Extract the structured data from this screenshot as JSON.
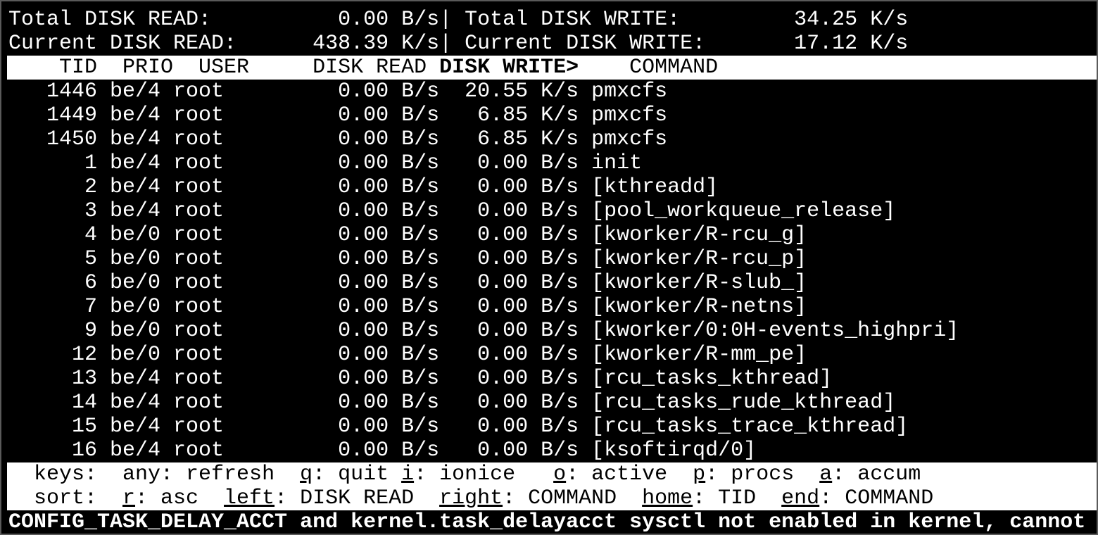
{
  "summary": {
    "total_read_label": "Total DISK READ:",
    "total_read": "0.00 B/s",
    "total_write_label": "Total DISK WRITE:",
    "total_write": "34.25 K/s",
    "current_read_label": "Current DISK READ:",
    "current_read": "438.39 K/s",
    "current_write_label": "Current DISK WRITE:",
    "current_write": "17.12 K/s",
    "separator": "|"
  },
  "header": {
    "tid": "TID",
    "prio": "PRIO",
    "user": "USER",
    "disk_read": "DISK READ",
    "disk_write": "DISK WRITE>",
    "command": "COMMAND",
    "sorted_column": "disk_write"
  },
  "rows": [
    {
      "tid": "1446",
      "prio": "be/4",
      "user": "root",
      "disk_read": "0.00 B/s",
      "disk_write": "20.55 K/s",
      "command": "pmxcfs"
    },
    {
      "tid": "1449",
      "prio": "be/4",
      "user": "root",
      "disk_read": "0.00 B/s",
      "disk_write": "6.85 K/s",
      "command": "pmxcfs"
    },
    {
      "tid": "1450",
      "prio": "be/4",
      "user": "root",
      "disk_read": "0.00 B/s",
      "disk_write": "6.85 K/s",
      "command": "pmxcfs"
    },
    {
      "tid": "1",
      "prio": "be/4",
      "user": "root",
      "disk_read": "0.00 B/s",
      "disk_write": "0.00 B/s",
      "command": "init"
    },
    {
      "tid": "2",
      "prio": "be/4",
      "user": "root",
      "disk_read": "0.00 B/s",
      "disk_write": "0.00 B/s",
      "command": "[kthreadd]"
    },
    {
      "tid": "3",
      "prio": "be/4",
      "user": "root",
      "disk_read": "0.00 B/s",
      "disk_write": "0.00 B/s",
      "command": "[pool_workqueue_release]"
    },
    {
      "tid": "4",
      "prio": "be/0",
      "user": "root",
      "disk_read": "0.00 B/s",
      "disk_write": "0.00 B/s",
      "command": "[kworker/R-rcu_g]"
    },
    {
      "tid": "5",
      "prio": "be/0",
      "user": "root",
      "disk_read": "0.00 B/s",
      "disk_write": "0.00 B/s",
      "command": "[kworker/R-rcu_p]"
    },
    {
      "tid": "6",
      "prio": "be/0",
      "user": "root",
      "disk_read": "0.00 B/s",
      "disk_write": "0.00 B/s",
      "command": "[kworker/R-slub_]"
    },
    {
      "tid": "7",
      "prio": "be/0",
      "user": "root",
      "disk_read": "0.00 B/s",
      "disk_write": "0.00 B/s",
      "command": "[kworker/R-netns]"
    },
    {
      "tid": "9",
      "prio": "be/0",
      "user": "root",
      "disk_read": "0.00 B/s",
      "disk_write": "0.00 B/s",
      "command": "[kworker/0:0H-events_highpri]"
    },
    {
      "tid": "12",
      "prio": "be/0",
      "user": "root",
      "disk_read": "0.00 B/s",
      "disk_write": "0.00 B/s",
      "command": "[kworker/R-mm_pe]"
    },
    {
      "tid": "13",
      "prio": "be/4",
      "user": "root",
      "disk_read": "0.00 B/s",
      "disk_write": "0.00 B/s",
      "command": "[rcu_tasks_kthread]"
    },
    {
      "tid": "14",
      "prio": "be/4",
      "user": "root",
      "disk_read": "0.00 B/s",
      "disk_write": "0.00 B/s",
      "command": "[rcu_tasks_rude_kthread]"
    },
    {
      "tid": "15",
      "prio": "be/4",
      "user": "root",
      "disk_read": "0.00 B/s",
      "disk_write": "0.00 B/s",
      "command": "[rcu_tasks_trace_kthread]"
    },
    {
      "tid": "16",
      "prio": "be/4",
      "user": "root",
      "disk_read": "0.00 B/s",
      "disk_write": "0.00 B/s",
      "command": "[ksoftirqd/0]"
    }
  ],
  "keys": {
    "label": "keys:",
    "items": [
      {
        "key": "any",
        "label": "refresh",
        "underline": false
      },
      {
        "key": "q",
        "label": "quit",
        "underline": true
      },
      {
        "key": "i",
        "label": "ionice",
        "underline": true
      },
      {
        "key": "o",
        "label": "active",
        "underline": true
      },
      {
        "key": "p",
        "label": "procs",
        "underline": true
      },
      {
        "key": "a",
        "label": "accum",
        "underline": true
      }
    ]
  },
  "sort": {
    "label": "sort:",
    "items": [
      {
        "key": "r",
        "label": "asc",
        "underline": true
      },
      {
        "key": "left",
        "label": "DISK READ",
        "underline": true
      },
      {
        "key": "right",
        "label": "COMMAND",
        "underline": true
      },
      {
        "key": "home",
        "label": "TID",
        "underline": true
      },
      {
        "key": "end",
        "label": "COMMAND",
        "underline": true
      }
    ]
  },
  "warning": "CONFIG_TASK_DELAY_ACCT and kernel.task_delayacct sysctl not enabled in kernel, cannot"
}
